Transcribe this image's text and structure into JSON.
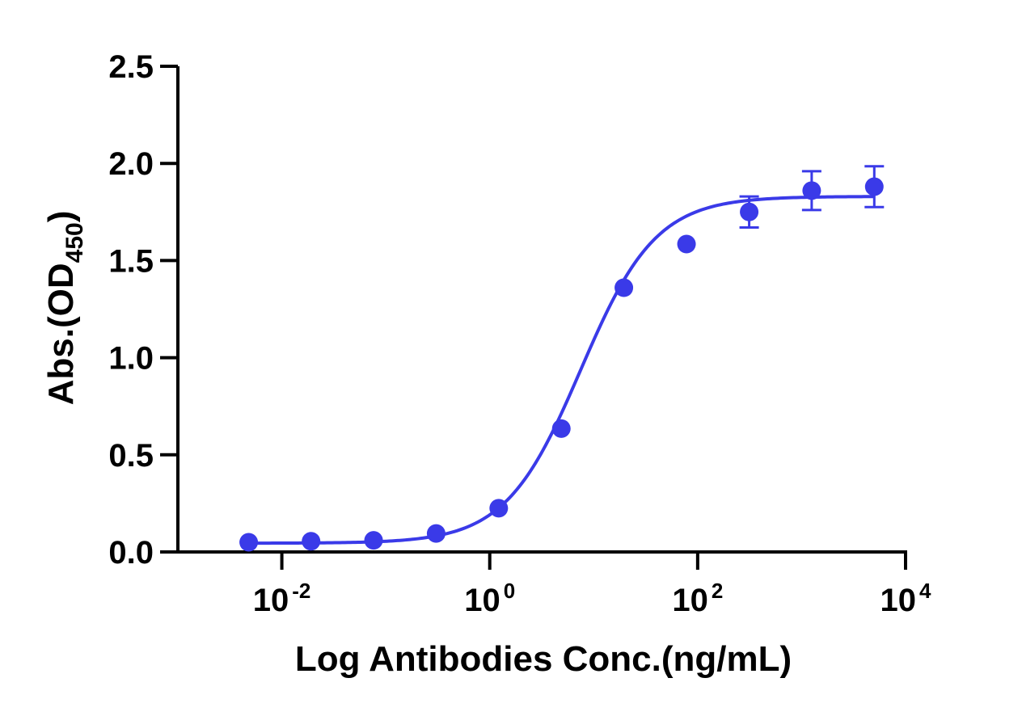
{
  "chart_data": {
    "type": "scatter",
    "xscale": "log",
    "x_axis": {
      "label": "Log Antibodies Conc.(ng/mL)",
      "range": [
        0.001,
        10000
      ],
      "tick_values": [
        0.01,
        1,
        100,
        10000
      ],
      "tick_labels": [
        {
          "base": "10",
          "exp": "-2"
        },
        {
          "base": "10",
          "exp": "0"
        },
        {
          "base": "10",
          "exp": "2"
        },
        {
          "base": "10",
          "exp": "4"
        }
      ]
    },
    "y_axis": {
      "label_main": "Abs.(OD",
      "label_sub": "450",
      "label_close": ")",
      "range": [
        0,
        2.5
      ],
      "tick_values": [
        0,
        0.5,
        1.0,
        1.5,
        2.0,
        2.5
      ],
      "tick_labels": [
        "0.0",
        "0.5",
        "1.0",
        "1.5",
        "2.0",
        "2.5"
      ]
    },
    "grid": false,
    "series": [
      {
        "color": "#3a3ae8",
        "x": [
          0.0048,
          0.0191,
          0.0763,
          0.305,
          1.22,
          4.88,
          19.5,
          78.1,
          313,
          1250,
          5000
        ],
        "y": [
          0.05,
          0.055,
          0.06,
          0.095,
          0.225,
          0.635,
          1.36,
          1.585,
          1.75,
          1.86,
          1.88
        ],
        "error": [
          0,
          0,
          0,
          0,
          0,
          0,
          0,
          0,
          0.08,
          0.1,
          0.105
        ],
        "fit": {
          "model": "4PL",
          "bottom": 0.045,
          "top": 1.83,
          "ec50": 7.5,
          "hill": 1.2,
          "x_range": [
            0.0048,
            5000
          ]
        }
      }
    ]
  }
}
